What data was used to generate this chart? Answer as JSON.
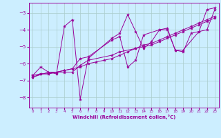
{
  "title": "",
  "xlabel": "Windchill (Refroidissement éolien,°C)",
  "ylabel": "",
  "bg_color": "#cceeff",
  "grid_color": "#aacccc",
  "line_color": "#990099",
  "xlim": [
    -0.5,
    23.5
  ],
  "ylim": [
    -8.6,
    -2.4
  ],
  "yticks": [
    -8,
    -7,
    -6,
    -5,
    -4,
    -3
  ],
  "xticks": [
    0,
    1,
    2,
    3,
    4,
    5,
    6,
    7,
    8,
    9,
    10,
    11,
    12,
    13,
    14,
    15,
    16,
    17,
    18,
    19,
    20,
    21,
    22,
    23
  ],
  "series": [
    {
      "x": [
        0,
        1,
        2,
        3,
        4,
        5,
        6,
        7,
        10,
        11,
        12,
        13,
        14,
        15,
        16,
        17,
        18,
        19,
        20,
        21,
        22,
        23
      ],
      "y": [
        -6.7,
        -6.2,
        -6.5,
        -6.6,
        -3.8,
        -3.4,
        -8.1,
        -5.7,
        -4.5,
        -4.2,
        -3.1,
        -4.1,
        -5.1,
        -4.7,
        -4.0,
        -3.9,
        -5.2,
        -5.3,
        -4.2,
        -4.1,
        -2.8,
        -2.7
      ]
    },
    {
      "x": [
        0,
        1,
        2,
        3,
        4,
        5,
        6,
        7,
        8,
        9,
        10,
        11,
        12,
        13,
        14,
        15,
        16,
        17,
        18,
        19,
        20,
        21,
        22,
        23
      ],
      "y": [
        -6.7,
        -6.6,
        -6.6,
        -6.5,
        -6.4,
        -6.3,
        -6.2,
        -6.0,
        -5.9,
        -5.8,
        -5.7,
        -5.5,
        -5.3,
        -5.1,
        -5.0,
        -4.9,
        -4.7,
        -4.5,
        -4.3,
        -4.1,
        -3.9,
        -3.7,
        -3.5,
        -3.3
      ]
    },
    {
      "x": [
        0,
        2,
        3,
        4,
        5,
        6,
        7,
        10,
        11,
        12,
        13,
        14,
        16,
        17,
        18,
        19,
        21,
        22,
        23
      ],
      "y": [
        -6.8,
        -6.5,
        -6.5,
        -6.4,
        -6.3,
        -5.7,
        -5.6,
        -4.6,
        -4.4,
        -6.2,
        -5.8,
        -4.3,
        -4.0,
        -4.0,
        -5.2,
        -5.2,
        -4.1,
        -4.0,
        -2.8
      ]
    },
    {
      "x": [
        0,
        1,
        2,
        3,
        4,
        5,
        6,
        7,
        10,
        11,
        13,
        14,
        15,
        16,
        17,
        18,
        19,
        20,
        21,
        22,
        23
      ],
      "y": [
        -6.8,
        -6.6,
        -6.6,
        -6.5,
        -6.5,
        -6.5,
        -6.1,
        -5.8,
        -5.5,
        -5.3,
        -5.1,
        -4.9,
        -4.8,
        -4.6,
        -4.4,
        -4.2,
        -4.0,
        -3.8,
        -3.6,
        -3.4,
        -3.2
      ]
    }
  ]
}
